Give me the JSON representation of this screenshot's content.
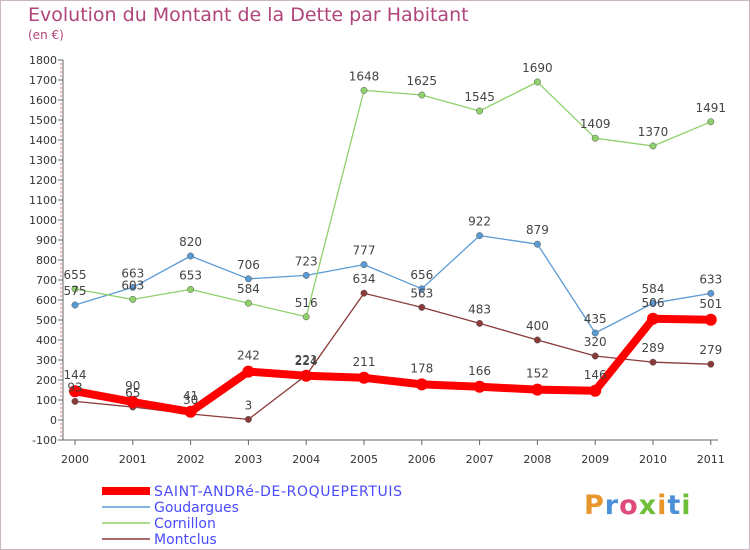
{
  "header": {
    "title": "Evolution du Montant de la Dette par Habitant",
    "subtitle": "(en €)"
  },
  "logo": {
    "text": "Proxiti",
    "colors": [
      "#e8952c",
      "#4a90d9",
      "#e04b7a",
      "#6fbf3a",
      "#e8952c",
      "#4a90d9",
      "#6fbf3a"
    ]
  },
  "chart_data": {
    "type": "line",
    "title": "Evolution du Montant de la Dette par Habitant",
    "subtitle": "(en €)",
    "xlabel": "",
    "ylabel": "",
    "ylim": [
      -100,
      1800
    ],
    "yticks": [
      -100,
      0,
      100,
      200,
      300,
      400,
      500,
      600,
      700,
      800,
      900,
      1000,
      1100,
      1200,
      1300,
      1400,
      1500,
      1600,
      1700,
      1800
    ],
    "grid": false,
    "legend_position": "bottom-left",
    "categories": [
      "2000",
      "2001",
      "2002",
      "2003",
      "2004",
      "2005",
      "2006",
      "2007",
      "2008",
      "2009",
      "2010",
      "2011"
    ],
    "series": [
      {
        "name": "Goudargues",
        "color": "#5b9bd5",
        "values": [
          575,
          663,
          820,
          706,
          723,
          777,
          656,
          922,
          879,
          435,
          584,
          633
        ],
        "labels": [
          "575",
          "663",
          "820",
          "706",
          "723",
          "777",
          "656",
          "922",
          "879",
          "435",
          "584",
          "633"
        ]
      },
      {
        "name": "Cornillon",
        "color": "#8fd16b",
        "values": [
          655,
          603,
          653,
          584,
          516,
          1648,
          1625,
          1545,
          1690,
          1409,
          1370,
          1491
        ],
        "labels": [
          "655",
          "603",
          "653",
          "584",
          "516",
          "1648",
          "1625",
          "1545",
          "1690",
          "1409",
          "1370",
          "1491"
        ]
      },
      {
        "name": "Montclus",
        "color": "#8b3a3a",
        "values": [
          93,
          65,
          30,
          3,
          224,
          634,
          563,
          483,
          400,
          320,
          289,
          279
        ],
        "labels": [
          "93",
          "65",
          "30",
          "3",
          "224",
          "634",
          "563",
          "483",
          "400",
          "320",
          "289",
          "279"
        ]
      },
      {
        "name": "SAINT-ANDRÉ-DE-ROQUEPERTUIS",
        "color": "#ff0000",
        "values": [
          144,
          90,
          41,
          242,
          221,
          211,
          178,
          166,
          152,
          146,
          506,
          501
        ],
        "labels": [
          "144",
          "90",
          "41",
          "242",
          "221",
          "211",
          "178",
          "166",
          "152",
          "146",
          "506",
          "501"
        ]
      }
    ],
    "legend": [
      {
        "name": "SAINT-ANDRÉ-DE-ROQUEPERTUIS",
        "label": "SAINT-ANDRé-DE-ROQUEPERTUIS",
        "color": "#ff0000",
        "thick": true
      },
      {
        "name": "Goudargues",
        "label": "Goudargues",
        "color": "#5b9bd5",
        "thick": false
      },
      {
        "name": "Cornillon",
        "label": "Cornillon",
        "color": "#8fd16b",
        "thick": false
      },
      {
        "name": "Montclus",
        "label": "Montclus",
        "color": "#8b3a3a",
        "thick": false
      }
    ],
    "legend_text_color": "#4a4aff"
  }
}
